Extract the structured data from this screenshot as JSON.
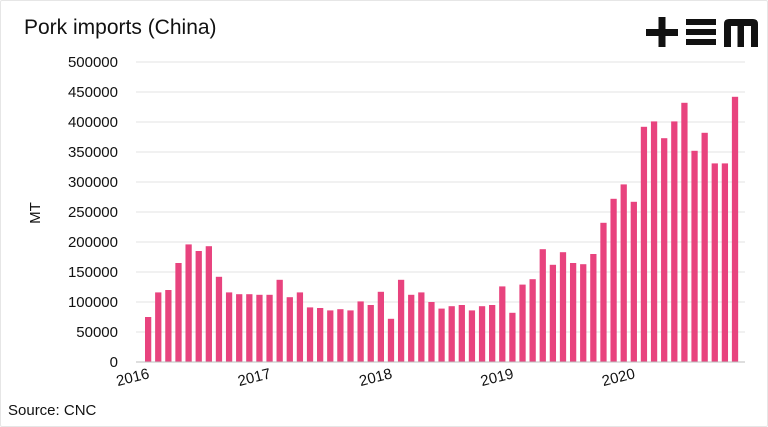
{
  "title": "Pork imports (China)",
  "source": "Source: CNC",
  "logo": {
    "text": "+EM",
    "color": "#111111"
  },
  "chart_data": {
    "type": "bar",
    "title": "Pork imports (China)",
    "xlabel": "",
    "ylabel": "MT",
    "ylim": [
      0,
      500000
    ],
    "yticks": [
      0,
      50000,
      100000,
      150000,
      200000,
      250000,
      300000,
      350000,
      400000,
      450000,
      500000
    ],
    "xtick_labels": [
      "2016",
      "2017",
      "2018",
      "2019",
      "2020"
    ],
    "grid": true,
    "bar_color": "#e8437e",
    "series": [
      {
        "values": [
          75000,
          116000,
          120000,
          165000,
          196000,
          185000,
          193000,
          142000,
          116000,
          113000,
          113000,
          112000,
          112000,
          137000,
          108000,
          116000,
          91000,
          90000,
          86000,
          88000,
          86000,
          101000,
          95000,
          117000,
          72000,
          137000,
          112000,
          116000,
          100000,
          89000,
          93000,
          95000,
          86000,
          93000,
          95000,
          126000,
          82000,
          129000,
          138000,
          188000,
          162000,
          183000,
          165000,
          163000,
          180000,
          232000,
          272000,
          296000,
          267000,
          392000,
          401000,
          373000,
          401000,
          432000,
          352000,
          382000,
          331000,
          331000,
          442000
        ]
      }
    ]
  }
}
